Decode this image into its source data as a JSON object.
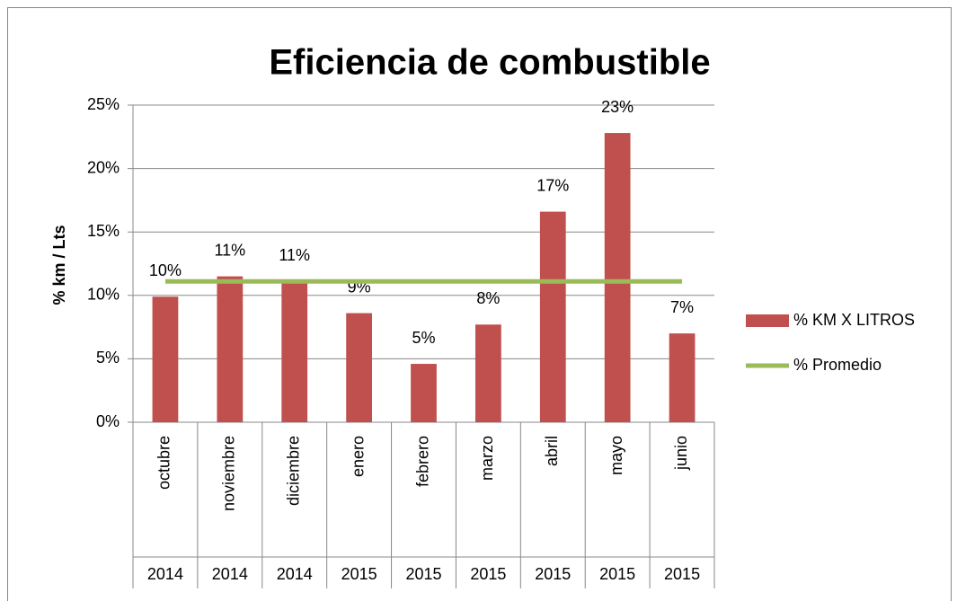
{
  "chart_data": {
    "type": "bar",
    "title": "Eficiencia de combustible",
    "y_label": "% km / Lts",
    "categories": [
      "octubre",
      "noviembre",
      "diciembre",
      "enero",
      "febrero",
      "marzo",
      "abril",
      "mayo",
      "junio"
    ],
    "years": [
      "2014",
      "2014",
      "2014",
      "2015",
      "2015",
      "2015",
      "2015",
      "2015",
      "2015"
    ],
    "series": [
      {
        "name": "% KM X LITROS",
        "type": "bar",
        "color": "#c0504d",
        "values": [
          9.9,
          11.5,
          11.1,
          8.6,
          4.6,
          7.7,
          16.6,
          22.8,
          7.0
        ],
        "value_labels": [
          "10%",
          "11%",
          "11%",
          "9%",
          "5%",
          "8%",
          "17%",
          "23%",
          "7%"
        ]
      },
      {
        "name": "% Promedio",
        "type": "line",
        "color": "#9bbb59",
        "values": [
          11.1,
          11.1,
          11.1,
          11.1,
          11.1,
          11.1,
          11.1,
          11.1,
          11.1
        ]
      }
    ],
    "ylim": [
      0,
      25
    ],
    "yticks": [
      {
        "value": 0,
        "label": "0%"
      },
      {
        "value": 5,
        "label": "5%"
      },
      {
        "value": 10,
        "label": "10%"
      },
      {
        "value": 15,
        "label": "15%"
      },
      {
        "value": 20,
        "label": "20%"
      },
      {
        "value": 25,
        "label": "25%"
      }
    ],
    "grid": true,
    "legend": "right"
  }
}
